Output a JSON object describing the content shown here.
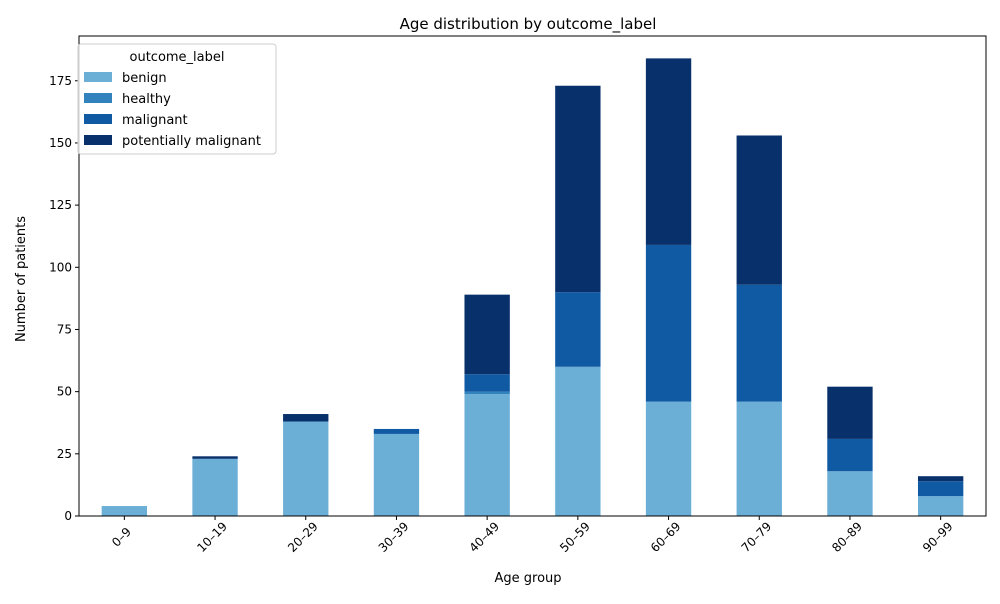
{
  "chart_data": {
    "type": "bar",
    "stacked": true,
    "title": "Age distribution by outcome_label",
    "xlabel": "Age group",
    "ylabel": "Number of patients",
    "categories": [
      "0–9",
      "10–19",
      "20–29",
      "30–39",
      "40–49",
      "50–59",
      "60–69",
      "70–79",
      "80–89",
      "90–99"
    ],
    "ylim": [
      0,
      193
    ],
    "yticks": [
      0,
      25,
      50,
      75,
      100,
      125,
      150,
      175
    ],
    "grid": false,
    "legend": {
      "title": "outcome_label",
      "placement": "top-left"
    },
    "series": [
      {
        "name": "benign",
        "color": "#6baed6",
        "values": [
          4,
          23,
          38,
          33,
          49,
          60,
          46,
          46,
          18,
          8
        ]
      },
      {
        "name": "healthy",
        "color": "#3182bd",
        "values": [
          0,
          0,
          0,
          0,
          1,
          0,
          0,
          0,
          0,
          0
        ]
      },
      {
        "name": "malignant",
        "color": "#1059a3",
        "values": [
          0,
          0,
          0,
          2,
          7,
          30,
          63,
          47,
          13,
          6
        ]
      },
      {
        "name": "potentially malignant",
        "color": "#08306b",
        "values": [
          0,
          1,
          3,
          0,
          32,
          83,
          75,
          60,
          21,
          2
        ]
      }
    ]
  }
}
